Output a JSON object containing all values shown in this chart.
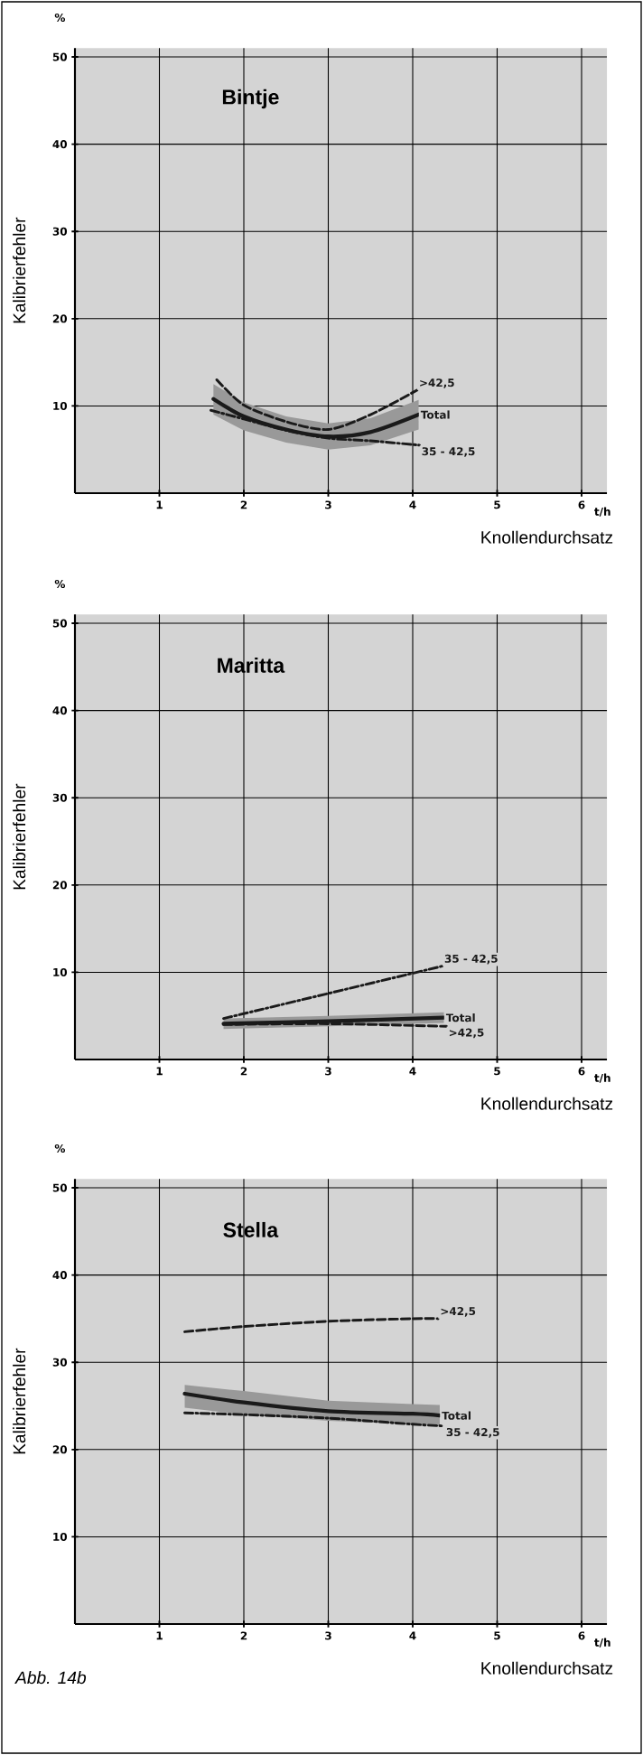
{
  "chart_data": [
    {
      "type": "line",
      "title": "Bintje",
      "xlabel": "Knollendurchsatz",
      "ylabel": "Kalibrierfehler",
      "annotations": [
        "%",
        "t/h"
      ],
      "xlim": [
        0,
        6.3
      ],
      "ylim": [
        0,
        51
      ],
      "xticks": [
        1,
        2,
        3,
        4,
        5,
        6
      ],
      "yticks": [
        10,
        20,
        30,
        40,
        50
      ],
      "grid": true,
      "series": [
        {
          "name": ">42,5",
          "color": "#1a1a1a",
          "line_style": "dashed",
          "x": [
            1.68,
            2,
            2.5,
            3,
            3.5,
            4.05
          ],
          "values": [
            13.0,
            10.1,
            8.2,
            7.3,
            9.0,
            11.8
          ]
        },
        {
          "name": "Total",
          "color": "#1a1a1a",
          "line_style": "solid",
          "x": [
            1.64,
            2,
            2.5,
            3,
            3.5,
            4.07
          ],
          "values": [
            10.8,
            8.8,
            7.3,
            6.5,
            7.0,
            9.0
          ],
          "lower": [
            9.0,
            7.2,
            5.8,
            5.0,
            5.5,
            7.3
          ],
          "upper": [
            12.5,
            10.4,
            8.8,
            8.0,
            8.6,
            10.7
          ]
        },
        {
          "name": "35 - 42,5",
          "color": "#1a1a1a",
          "line_style": "dashdot",
          "x": [
            1.61,
            2,
            2.5,
            3,
            3.5,
            4.08
          ],
          "values": [
            9.5,
            8.5,
            7.2,
            6.3,
            6.0,
            5.5
          ]
        }
      ]
    },
    {
      "type": "line",
      "title": "Maritta",
      "xlabel": "Knollendurchsatz",
      "ylabel": "Kalibrierfehler",
      "annotations": [
        "%",
        "t/h"
      ],
      "xlim": [
        0,
        6.3
      ],
      "ylim": [
        0,
        51
      ],
      "xticks": [
        1,
        2,
        3,
        4,
        5,
        6
      ],
      "yticks": [
        10,
        20,
        30,
        40,
        50
      ],
      "grid": true,
      "series": [
        {
          "name": "35 - 42,5",
          "color": "#1a1a1a",
          "line_style": "dashdot",
          "x": [
            1.76,
            4.35
          ],
          "values": [
            4.7,
            10.7
          ]
        },
        {
          "name": "Total",
          "color": "#1a1a1a",
          "line_style": "solid",
          "x": [
            1.76,
            3,
            4.37
          ],
          "values": [
            4.1,
            4.4,
            4.8
          ],
          "lower": [
            3.5,
            3.8,
            4.2
          ],
          "upper": [
            4.7,
            5.0,
            5.4
          ]
        },
        {
          "name": ">42,5",
          "color": "#1a1a1a",
          "line_style": "dashed",
          "x": [
            1.76,
            3,
            4.4
          ],
          "values": [
            4.0,
            4.1,
            3.8
          ]
        }
      ]
    },
    {
      "type": "line",
      "title": "Stella",
      "xlabel": "Knollendurchsatz",
      "ylabel": "Kalibrierfehler",
      "annotations": [
        "%",
        "t/h",
        "Abb. 14b"
      ],
      "xlim": [
        0,
        6.3
      ],
      "ylim": [
        0,
        51
      ],
      "xticks": [
        1,
        2,
        3,
        4,
        5,
        6
      ],
      "yticks": [
        10,
        20,
        30,
        40,
        50
      ],
      "grid": true,
      "series": [
        {
          "name": ">42,5",
          "color": "#1a1a1a",
          "line_style": "dashed",
          "x": [
            1.3,
            2,
            3,
            4,
            4.3
          ],
          "values": [
            33.5,
            34.1,
            34.7,
            35.0,
            35.0
          ]
        },
        {
          "name": "Total",
          "color": "#1a1a1a",
          "line_style": "solid",
          "x": [
            1.3,
            2,
            3,
            4,
            4.32
          ],
          "values": [
            26.4,
            25.4,
            24.4,
            24.1,
            23.9
          ],
          "lower": [
            24.8,
            24.0,
            23.3,
            22.9,
            22.8
          ],
          "upper": [
            27.4,
            26.7,
            25.6,
            25.2,
            25.1
          ]
        },
        {
          "name": "35 - 42,5",
          "color": "#1a1a1a",
          "line_style": "dashdot",
          "x": [
            1.3,
            2,
            3,
            4,
            4.37
          ],
          "values": [
            24.2,
            24.0,
            23.6,
            22.9,
            22.7
          ]
        }
      ]
    }
  ]
}
